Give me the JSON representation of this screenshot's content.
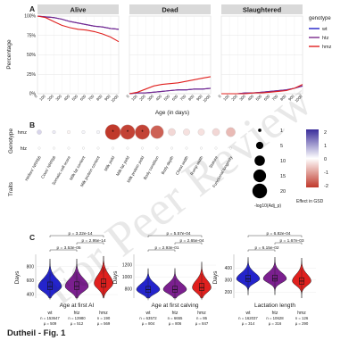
{
  "figure": {
    "caption": "Dutheil - Fig. 1",
    "watermark": "For Peer Review",
    "panel_labels": [
      "A",
      "B",
      "C"
    ]
  },
  "chart_data": [
    {
      "id": "A",
      "type": "line",
      "facets": [
        "Alive",
        "Dead",
        "Slaughtered"
      ],
      "ylabel": "Percentage",
      "xlabel": "Age (in days)",
      "x": [
        0,
        100,
        200,
        300,
        400,
        500,
        600,
        700,
        800,
        900,
        1000
      ],
      "x_ticks": [
        "0",
        "100",
        "200",
        "300",
        "400",
        "500",
        "600",
        "700",
        "800",
        "900",
        "1000"
      ],
      "ylim": [
        0,
        100
      ],
      "y_ticks": [
        "0%",
        "25%",
        "50%",
        "75%",
        "100%"
      ],
      "legend_title": "genotype",
      "series_styles": [
        {
          "name": "wt",
          "color": "#2020c8"
        },
        {
          "name": "htz",
          "color": "#7a2a8c"
        },
        {
          "name": "hmz",
          "color": "#e0201e"
        }
      ],
      "panels": [
        {
          "facet": "Alive",
          "series": [
            {
              "name": "wt",
              "values": [
                100,
                99,
                98,
                96,
                93,
                91,
                89,
                87,
                86,
                84,
                83
              ]
            },
            {
              "name": "htz",
              "values": [
                100,
                99,
                98,
                96,
                93,
                91,
                89,
                87,
                86,
                84,
                83
              ]
            },
            {
              "name": "hmz",
              "values": [
                100,
                98,
                93,
                88,
                85,
                83,
                82,
                80,
                77,
                73,
                67
              ]
            }
          ]
        },
        {
          "facet": "Dead",
          "series": [
            {
              "name": "wt",
              "values": [
                0,
                1,
                1,
                2,
                3,
                4,
                5,
                5,
                6,
                6,
                7
              ]
            },
            {
              "name": "htz",
              "values": [
                0,
                1,
                1,
                2,
                3,
                4,
                5,
                5,
                6,
                6,
                7
              ]
            },
            {
              "name": "hmz",
              "values": [
                0,
                2,
                6,
                10,
                12,
                13,
                14,
                16,
                18,
                20,
                22
              ]
            }
          ]
        },
        {
          "facet": "Slaughtered",
          "series": [
            {
              "name": "wt",
              "values": [
                0,
                0,
                0,
                1,
                1,
                2,
                3,
                4,
                5,
                7,
                10
              ]
            },
            {
              "name": "htz",
              "values": [
                0,
                0,
                0,
                1,
                1,
                2,
                3,
                4,
                5,
                7,
                10
              ]
            },
            {
              "name": "hmz",
              "values": [
                0,
                0,
                0,
                0,
                1,
                1,
                2,
                3,
                4,
                7,
                12
              ]
            }
          ]
        }
      ]
    },
    {
      "id": "B",
      "type": "bubble-heatmap",
      "ylabel": "Genotype",
      "xlabel": "Traits",
      "rows": [
        "hmz",
        "htz"
      ],
      "traits": [
        "Heifers' NRR56",
        "Cows' NRR56",
        "Somatic cell score",
        "Milk fat content",
        "Milk protein content",
        "Milk yield",
        "Milk fat yield",
        "Milk protein yield",
        "Body condition",
        "Body depth",
        "Chest width",
        "Rump width",
        "Stature",
        "Functional longevity"
      ],
      "size_legend_title": "-log10(Adj_p)",
      "size_legend": [
        "1",
        "5",
        "10",
        "15",
        "20"
      ],
      "color_legend_title": "Effect in GSD",
      "color_legend_ticks": [
        "2",
        "1",
        "0",
        "-1",
        "-2"
      ],
      "colorscale": {
        "low": "#c0392b",
        "mid": "#ffffff",
        "high": "#3a2d9a"
      },
      "cells": [
        {
          "row": "hmz",
          "effect": [
            0.4,
            0.2,
            -0.1,
            0.1,
            0.1,
            -2.0,
            -1.9,
            -1.9,
            -1.6,
            -0.4,
            -0.3,
            -0.3,
            -0.4,
            -0.7
          ],
          "neglog10p": [
            2,
            1,
            1,
            1,
            1,
            22,
            20,
            20,
            16,
            5,
            4,
            4,
            5,
            8
          ],
          "significant": [
            false,
            false,
            false,
            false,
            false,
            true,
            true,
            true,
            false,
            false,
            false,
            false,
            false,
            false
          ]
        },
        {
          "row": "htz",
          "effect": [
            0,
            0,
            0,
            0,
            0,
            0,
            0,
            0,
            0,
            0,
            0,
            0,
            0,
            0
          ],
          "neglog10p": [
            0.5,
            0.5,
            0.5,
            0.5,
            0.5,
            0.5,
            0.5,
            0.5,
            0.5,
            0.5,
            0.5,
            0.5,
            0.5,
            0.5
          ]
        }
      ]
    },
    {
      "id": "C",
      "type": "violin",
      "ylabel": "Days",
      "categories": [
        "wt",
        "htz",
        "hmz"
      ],
      "fills": [
        "#2424cc",
        "#7b1f8f",
        "#e0201e"
      ],
      "panels": [
        {
          "title": "Age at first AI",
          "ylim": [
            350,
            950
          ],
          "y_ticks": [
            400,
            600,
            800
          ],
          "median": [
            515,
            518,
            560
          ],
          "q1": [
            470,
            472,
            505
          ],
          "q3": [
            580,
            582,
            625
          ],
          "p_values": [
            "p = 3.22e-14",
            "p = 2.95e-14",
            "p = 3.53e-05"
          ],
          "n_labels": [
            "n = 153647",
            "n = 13980",
            "n = 190"
          ],
          "mu_labels": [
            "µ = 509",
            "µ = 512",
            "µ = 569"
          ]
        },
        {
          "title": "Age at first calving",
          "ylim": [
            650,
            1350
          ],
          "y_ticks": [
            800,
            1000,
            1200
          ],
          "median": [
            790,
            793,
            825
          ],
          "q1": [
            745,
            748,
            775
          ],
          "q3": [
            845,
            848,
            895
          ],
          "p_values": [
            "p = 5.57e-04",
            "p = 2.65e-04",
            "p = 2.93e-01"
          ],
          "n_labels": [
            "n = 63572",
            "n = 6655",
            "n = 86"
          ],
          "mu_labels": [
            "µ = 804",
            "µ = 806",
            "µ = 847"
          ]
        },
        {
          "title": "Lactation length",
          "ylim": [
            150,
            500
          ],
          "y_ticks": [
            200,
            300,
            400
          ],
          "median": [
            310,
            312,
            292
          ],
          "q1": [
            290,
            292,
            265
          ],
          "q3": [
            340,
            342,
            320
          ],
          "p_values": [
            "p = 6.82e-04",
            "p = 1.67e-03",
            "p = 6.15e-02"
          ],
          "n_labels": [
            "n = 162037",
            "n = 10628",
            "n = 126"
          ],
          "mu_labels": [
            "µ = 314",
            "µ = 316",
            "µ = 290"
          ]
        }
      ]
    }
  ]
}
